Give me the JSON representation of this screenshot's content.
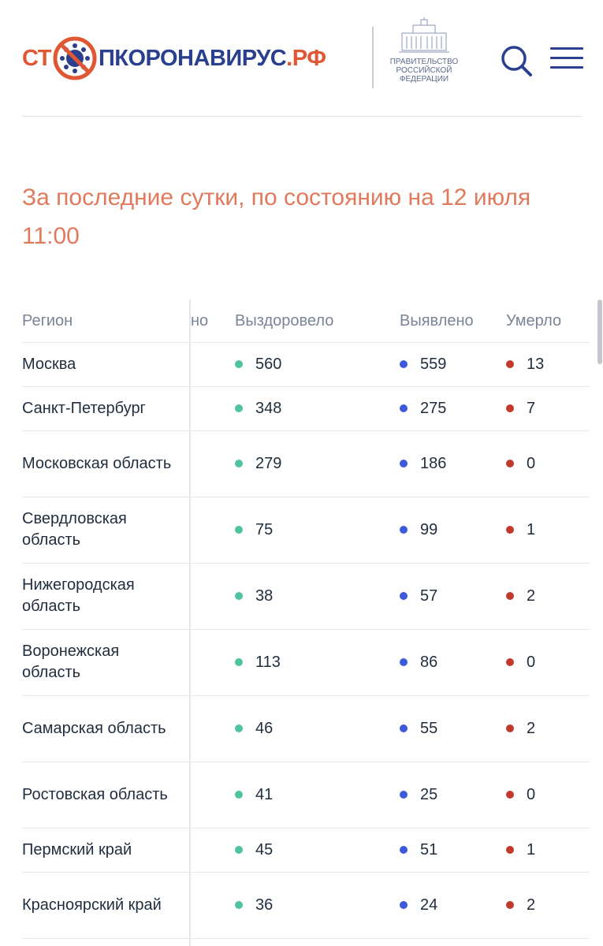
{
  "header": {
    "logo_part1": "СТ",
    "logo_part2": "ПКОРОНАВИРУС",
    "logo_part3": ".РФ",
    "gov_label_line1": "ПРАВИТЕЛЬСТВО",
    "gov_label_line2": "РОССИЙСКОЙ",
    "gov_label_line3": "ФЕДЕРАЦИИ",
    "icons": {
      "search": "search-icon",
      "menu": "menu-icon",
      "virus": "virus-stop-icon",
      "gov": "government-building-icon"
    }
  },
  "headline": {
    "line1": "За последние сутки, по состоянию на 12 июля",
    "line2": "11:00"
  },
  "colors": {
    "accent": "#e05734",
    "brand_navy": "#2b3f8f",
    "recovered": "#4fc3a1",
    "detected": "#3b5bdb",
    "died": "#c0392b"
  },
  "table": {
    "headers": {
      "region": "Регион",
      "hidden_partial": "но",
      "recovered": "Выздоровело",
      "detected": "Выявлено",
      "died": "Умерло"
    },
    "rows": [
      {
        "region": "Москва",
        "recovered": "560",
        "detected": "559",
        "died": "13"
      },
      {
        "region": "Санкт-Петербург",
        "recovered": "348",
        "detected": "275",
        "died": "7"
      },
      {
        "region": "Московская область",
        "recovered": "279",
        "detected": "186",
        "died": "0"
      },
      {
        "region": "Свердловская область",
        "recovered": "75",
        "detected": "99",
        "died": "1"
      },
      {
        "region": "Нижегородская область",
        "recovered": "38",
        "detected": "57",
        "died": "2"
      },
      {
        "region": "Воронежская область",
        "recovered": "113",
        "detected": "86",
        "died": "0"
      },
      {
        "region": "Самарская область",
        "recovered": "46",
        "detected": "55",
        "died": "2"
      },
      {
        "region": "Ростовская область",
        "recovered": "41",
        "detected": "25",
        "died": "0"
      },
      {
        "region": "Пермский край",
        "recovered": "45",
        "detected": "51",
        "died": "1"
      },
      {
        "region": "Красноярский край",
        "recovered": "36",
        "detected": "24",
        "died": "2"
      }
    ]
  }
}
